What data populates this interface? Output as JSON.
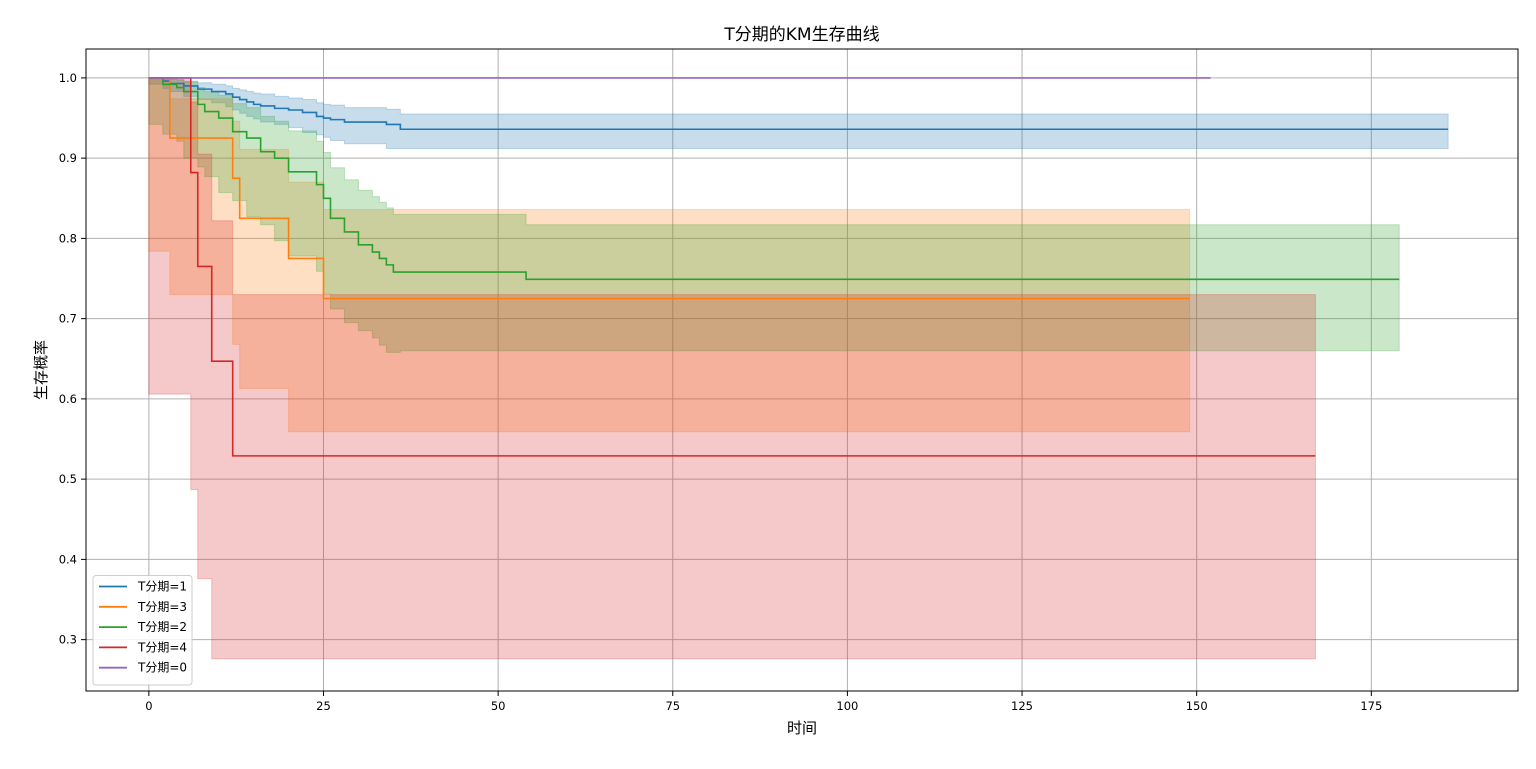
{
  "chart_data": {
    "type": "line",
    "title": "T分期的KM生存曲线",
    "xlabel": "时间",
    "ylabel": "生存概率",
    "xlim": [
      -9,
      196
    ],
    "ylim": [
      0.236,
      1.036
    ],
    "xticks": [
      0,
      25,
      50,
      75,
      100,
      125,
      150,
      175
    ],
    "yticks": [
      0.3,
      0.4,
      0.5,
      0.6,
      0.7,
      0.8,
      0.9,
      1.0
    ],
    "xtick_labels": [
      "0",
      "25",
      "50",
      "75",
      "100",
      "125",
      "150",
      "175"
    ],
    "ytick_labels": [
      "0.3",
      "0.4",
      "0.5",
      "0.6",
      "0.7",
      "0.8",
      "0.9",
      "1.0"
    ],
    "grid": true,
    "legend_position": "lower-left",
    "step": "post",
    "series": [
      {
        "name": "T分期=1",
        "color": "#1f77b4",
        "x": [
          0,
          2,
          3,
          5,
          7,
          9,
          11,
          12,
          13,
          14,
          15,
          16,
          18,
          20,
          22,
          24,
          25,
          26,
          28,
          34,
          36,
          186
        ],
        "y": [
          1.0,
          0.996,
          0.993,
          0.99,
          0.986,
          0.983,
          0.98,
          0.976,
          0.973,
          0.97,
          0.967,
          0.965,
          0.962,
          0.96,
          0.957,
          0.952,
          0.95,
          0.948,
          0.945,
          0.942,
          0.936,
          0.936
        ],
        "lower": [
          1.0,
          0.992,
          0.987,
          0.983,
          0.977,
          0.973,
          0.969,
          0.964,
          0.96,
          0.956,
          0.952,
          0.949,
          0.945,
          0.942,
          0.938,
          0.932,
          0.929,
          0.926,
          0.922,
          0.918,
          0.912,
          0.912
        ],
        "upper": [
          1.0,
          0.999,
          0.998,
          0.996,
          0.994,
          0.992,
          0.99,
          0.987,
          0.985,
          0.983,
          0.981,
          0.98,
          0.977,
          0.975,
          0.973,
          0.969,
          0.967,
          0.966,
          0.963,
          0.961,
          0.955,
          0.955
        ]
      },
      {
        "name": "T分期=3",
        "color": "#ff7f0e",
        "x": [
          0,
          3,
          12,
          13,
          20,
          25,
          149
        ],
        "y": [
          1.0,
          0.925,
          0.875,
          0.825,
          0.775,
          0.725,
          0.725
        ],
        "lower": [
          1.0,
          0.784,
          0.73,
          0.668,
          0.613,
          0.559,
          0.559
        ],
        "upper": [
          1.0,
          0.974,
          0.946,
          0.911,
          0.87,
          0.836,
          0.836
        ]
      },
      {
        "name": "T分期=2",
        "color": "#2ca02c",
        "x": [
          0,
          2,
          4,
          5,
          7,
          8,
          10,
          12,
          14,
          16,
          18,
          20,
          24,
          25,
          26,
          28,
          30,
          32,
          33,
          34,
          35,
          36,
          54,
          179
        ],
        "y": [
          1.0,
          0.992,
          0.988,
          0.983,
          0.967,
          0.958,
          0.95,
          0.933,
          0.925,
          0.908,
          0.9,
          0.883,
          0.867,
          0.85,
          0.825,
          0.808,
          0.792,
          0.783,
          0.775,
          0.767,
          0.758,
          0.758,
          0.749,
          0.749
        ],
        "lower": [
          1.0,
          0.942,
          0.93,
          0.921,
          0.9,
          0.889,
          0.877,
          0.857,
          0.847,
          0.827,
          0.817,
          0.797,
          0.778,
          0.759,
          0.731,
          0.712,
          0.695,
          0.685,
          0.676,
          0.667,
          0.658,
          0.658,
          0.66,
          0.66
        ],
        "upper": [
          1.0,
          0.999,
          0.997,
          0.995,
          0.988,
          0.983,
          0.978,
          0.968,
          0.963,
          0.952,
          0.946,
          0.934,
          0.921,
          0.907,
          0.888,
          0.873,
          0.86,
          0.852,
          0.845,
          0.838,
          0.83,
          0.83,
          0.817,
          0.817
        ]
      },
      {
        "name": "T分期=4",
        "color": "#d62728",
        "x": [
          0,
          6,
          7,
          9,
          12,
          167
        ],
        "y": [
          1.0,
          0.882,
          0.765,
          0.647,
          0.529,
          0.529
        ],
        "lower": [
          1.0,
          0.606,
          0.487,
          0.376,
          0.276,
          0.276
        ],
        "upper": [
          1.0,
          0.97,
          0.905,
          0.822,
          0.73,
          0.73
        ]
      },
      {
        "name": "T分期=0",
        "color": "#9467bd",
        "x": [
          0,
          152
        ],
        "y": [
          1.0,
          1.0
        ]
      }
    ]
  }
}
